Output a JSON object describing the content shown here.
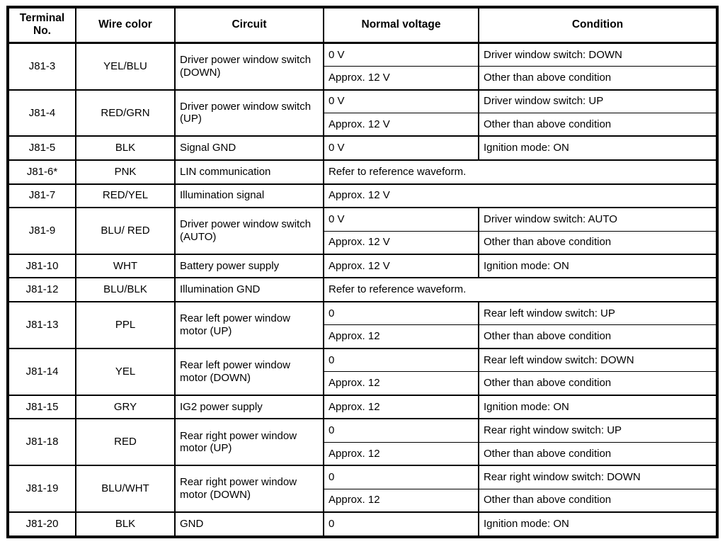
{
  "table": {
    "headers": [
      "Terminal No.",
      "Wire color",
      "Circuit",
      "Normal voltage",
      "Condition"
    ],
    "rows": [
      {
        "terminal": "J81-3",
        "wire": "YEL/BLU",
        "circuit": "Driver power window switch (DOWN)",
        "entries": [
          {
            "voltage": "0 V",
            "condition": "Driver window switch: DOWN"
          },
          {
            "voltage": "Approx. 12 V",
            "condition": "Other than above condition"
          }
        ]
      },
      {
        "terminal": "J81-4",
        "wire": "RED/GRN",
        "circuit": "Driver power window switch (UP)",
        "entries": [
          {
            "voltage": "0 V",
            "condition": "Driver window switch: UP"
          },
          {
            "voltage": "Approx. 12 V",
            "condition": "Other than above condition"
          }
        ]
      },
      {
        "terminal": "J81-5",
        "wire": "BLK",
        "circuit": "Signal GND",
        "entries": [
          {
            "voltage": "0 V",
            "condition": "Ignition mode: ON"
          }
        ]
      },
      {
        "terminal": "J81-6*",
        "wire": "PNK",
        "circuit": "LIN communication",
        "entries": [
          {
            "voltage": "Refer to reference waveform.",
            "span": true
          }
        ]
      },
      {
        "terminal": "J81-7",
        "wire": "RED/YEL",
        "circuit": "Illumination signal",
        "entries": [
          {
            "voltage": "Approx. 12 V",
            "span": true
          }
        ]
      },
      {
        "terminal": "J81-9",
        "wire": "BLU/ RED",
        "circuit": "Driver power window switch (AUTO)",
        "entries": [
          {
            "voltage": "0 V",
            "condition": "Driver window switch: AUTO"
          },
          {
            "voltage": "Approx. 12 V",
            "condition": "Other than above condition"
          }
        ]
      },
      {
        "terminal": "J81-10",
        "wire": "WHT",
        "circuit": "Battery power supply",
        "entries": [
          {
            "voltage": "Approx. 12 V",
            "condition": "Ignition mode: ON"
          }
        ]
      },
      {
        "terminal": "J81-12",
        "wire": "BLU/BLK",
        "circuit": "Illumination GND",
        "entries": [
          {
            "voltage": "Refer to reference waveform.",
            "span": true
          }
        ]
      },
      {
        "terminal": "J81-13",
        "wire": "PPL",
        "circuit": "Rear left power window motor (UP)",
        "entries": [
          {
            "voltage": "0",
            "condition": "Rear left window switch: UP"
          },
          {
            "voltage": "Approx. 12",
            "condition": "Other than above condition"
          }
        ]
      },
      {
        "terminal": "J81-14",
        "wire": "YEL",
        "circuit": "Rear left power window motor (DOWN)",
        "entries": [
          {
            "voltage": "0",
            "condition": "Rear left window switch: DOWN"
          },
          {
            "voltage": "Approx. 12",
            "condition": "Other than above condition"
          }
        ]
      },
      {
        "terminal": "J81-15",
        "wire": "GRY",
        "circuit": "IG2 power supply",
        "entries": [
          {
            "voltage": "Approx. 12",
            "condition": "Ignition mode: ON"
          }
        ]
      },
      {
        "terminal": "J81-18",
        "wire": "RED",
        "circuit": "Rear right power window motor (UP)",
        "entries": [
          {
            "voltage": "0",
            "condition": "Rear right window switch: UP"
          },
          {
            "voltage": "Approx. 12",
            "condition": "Other than above condition"
          }
        ]
      },
      {
        "terminal": "J81-19",
        "wire": "BLU/WHT",
        "circuit": "Rear right power window motor (DOWN)",
        "entries": [
          {
            "voltage": "0",
            "condition": "Rear right window switch: DOWN"
          },
          {
            "voltage": "Approx. 12",
            "condition": "Other than above condition"
          }
        ]
      },
      {
        "terminal": "J81-20",
        "wire": "BLK",
        "circuit": "GND",
        "entries": [
          {
            "voltage": "0",
            "condition": "Ignition mode: ON"
          }
        ]
      }
    ]
  }
}
